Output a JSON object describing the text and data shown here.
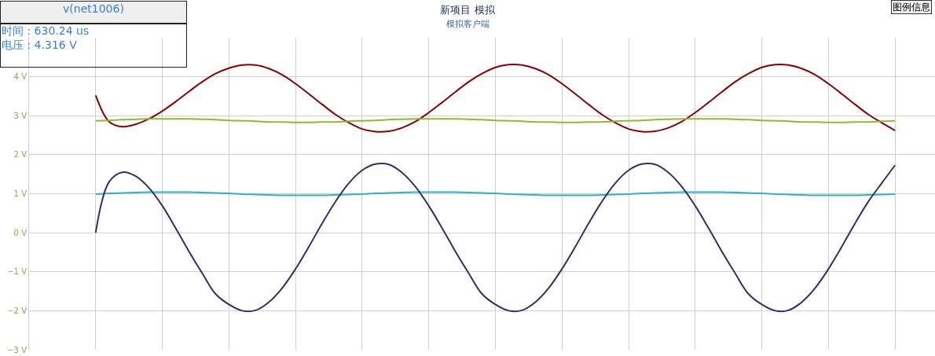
{
  "chart_data": {
    "type": "line",
    "title": "新项目 模拟",
    "subtitle": "模拟客户端",
    "annotations": [
      "v(net1006)",
      "时间 : 630.24 us\n电压 : 4.316 V",
      "图例信息"
    ],
    "categories": [
      null,
      null,
      null,
      null,
      null,
      null,
      null,
      null,
      null,
      null,
      null,
      null,
      null,
      null,
      null,
      null,
      null,
      null,
      null,
      null,
      null,
      null,
      null,
      null,
      null,
      null,
      null,
      null,
      null,
      null,
      null,
      null,
      null,
      null,
      null,
      null,
      null,
      null,
      null,
      null,
      null,
      null,
      null,
      null,
      null,
      null,
      null,
      null,
      null,
      null,
      null,
      null,
      null,
      null,
      null,
      null,
      null,
      null,
      null,
      null,
      null
    ],
    "series": [
      {
        "color": "#8b0000",
        "values": [
          3.52,
          2.85,
          2.72,
          2.78,
          2.92,
          3.12,
          3.36,
          3.62,
          3.87,
          4.08,
          4.22,
          4.3,
          4.3,
          4.21,
          4.05,
          3.82,
          3.56,
          3.29,
          3.03,
          2.82,
          2.66,
          2.59,
          2.6,
          2.69,
          2.85,
          3.08,
          3.34,
          3.61,
          3.87,
          4.08,
          4.24,
          4.31,
          4.3,
          4.21,
          4.05,
          3.82,
          3.56,
          3.29,
          3.03,
          2.82,
          2.66,
          2.59,
          2.6,
          2.69,
          2.85,
          3.08,
          3.34,
          3.61,
          3.87,
          4.08,
          4.24,
          4.31,
          4.3,
          4.21,
          4.05,
          3.82,
          3.56,
          3.29,
          3.03,
          2.82,
          2.62
        ]
      },
      {
        "color": "#8dbb2d",
        "values": [
          2.87,
          2.88,
          2.9,
          2.91,
          2.92,
          2.92,
          2.92,
          2.92,
          2.91,
          2.9,
          2.88,
          2.87,
          2.86,
          2.84,
          2.84,
          2.83,
          2.83,
          2.84,
          2.84,
          2.86,
          2.87,
          2.88,
          2.9,
          2.91,
          2.92,
          2.92,
          2.92,
          2.92,
          2.91,
          2.9,
          2.88,
          2.87,
          2.86,
          2.84,
          2.84,
          2.83,
          2.83,
          2.84,
          2.84,
          2.86,
          2.87,
          2.88,
          2.9,
          2.91,
          2.92,
          2.92,
          2.92,
          2.92,
          2.91,
          2.9,
          2.88,
          2.87,
          2.86,
          2.84,
          2.84,
          2.83,
          2.83,
          2.84,
          2.84,
          2.86,
          2.87
        ]
      },
      {
        "color": "#2fb0cf",
        "values": [
          0.99,
          1.01,
          1.02,
          1.03,
          1.04,
          1.04,
          1.04,
          1.04,
          1.03,
          1.02,
          1.01,
          0.99,
          0.98,
          0.97,
          0.96,
          0.96,
          0.96,
          0.96,
          0.97,
          0.98,
          0.99,
          1.01,
          1.02,
          1.03,
          1.04,
          1.04,
          1.04,
          1.04,
          1.03,
          1.02,
          1.01,
          0.99,
          0.98,
          0.97,
          0.96,
          0.96,
          0.96,
          0.96,
          0.97,
          0.98,
          0.99,
          1.01,
          1.02,
          1.03,
          1.04,
          1.04,
          1.04,
          1.04,
          1.03,
          1.02,
          1.01,
          0.99,
          0.98,
          0.97,
          0.96,
          0.96,
          0.96,
          0.96,
          0.97,
          0.98,
          0.99
        ]
      },
      {
        "color": "#3a2a6b",
        "values": [
          0,
          1.3,
          1.55,
          1.45,
          1.15,
          0.69,
          0.12,
          -0.48,
          -1.04,
          -1.57,
          -1.84,
          -2.0,
          -1.99,
          -1.78,
          -1.42,
          -0.93,
          -0.36,
          0.24,
          0.8,
          1.27,
          1.6,
          1.76,
          1.75,
          1.54,
          1.18,
          0.69,
          0.12,
          -0.48,
          -1.04,
          -1.57,
          -1.84,
          -2.0,
          -1.99,
          -1.78,
          -1.42,
          -0.93,
          -0.36,
          0.24,
          0.8,
          1.27,
          1.6,
          1.76,
          1.75,
          1.54,
          1.18,
          0.69,
          0.12,
          -0.48,
          -1.04,
          -1.57,
          -1.84,
          -2.0,
          -1.99,
          -1.78,
          -1.42,
          -0.93,
          -0.36,
          0.24,
          0.8,
          1.27,
          1.73
        ]
      }
    ],
    "ylim": [
      -3,
      5
    ],
    "yticks": [
      {
        "value": -3,
        "label": "−3 V"
      },
      {
        "value": -2,
        "label": "−2 V"
      },
      {
        "value": -1,
        "label": "−1 V"
      },
      {
        "value": 0,
        "label": "0 V"
      },
      {
        "value": 1,
        "label": "1 V"
      },
      {
        "value": 2,
        "label": "2 V"
      },
      {
        "value": 3,
        "label": "3 V"
      },
      {
        "value": 4,
        "label": "4 V"
      }
    ],
    "grid": true,
    "marker": "none",
    "line_style": "solid",
    "tick_labels": "y"
  }
}
